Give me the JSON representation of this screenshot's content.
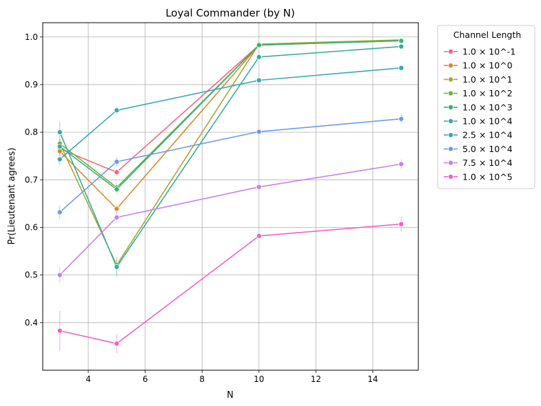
{
  "chart_data": {
    "type": "line",
    "title": "Loyal Commander (by N)",
    "xlabel": "N",
    "ylabel": "Pr(Lieutenant agrees)",
    "xlim": [
      2.4,
      15.6
    ],
    "ylim": [
      0.3,
      1.03
    ],
    "xticks": [
      4,
      6,
      8,
      10,
      12,
      14
    ],
    "yticks": [
      0.4,
      0.5,
      0.6,
      0.7,
      0.8,
      0.9,
      1.0
    ],
    "xtick_labels": [
      "4",
      "6",
      "8",
      "10",
      "12",
      "14"
    ],
    "ytick_labels": [
      "0.4",
      "0.5",
      "0.6",
      "0.7",
      "0.8",
      "0.9",
      "1.0"
    ],
    "grid": true,
    "legend_title": "Channel Length",
    "legend_position": "outside-right",
    "x": [
      3,
      5,
      10,
      15
    ],
    "series": [
      {
        "name": "1.0 × 10^-1",
        "color": "#f0667d",
        "values": [
          0.765,
          0.716,
          0.983,
          0.993
        ],
        "err": [
          0.01,
          0.008,
          0.003,
          0.002
        ]
      },
      {
        "name": "1.0 × 10^0",
        "color": "#d78a31",
        "values": [
          0.76,
          0.639,
          0.983,
          0.993
        ],
        "err": [
          0.01,
          0.009,
          0.003,
          0.002
        ]
      },
      {
        "name": "1.0 × 10^1",
        "color": "#a9a535",
        "values": [
          0.776,
          0.521,
          0.985,
          0.994
        ],
        "err": [
          0.01,
          0.012,
          0.003,
          0.002
        ]
      },
      {
        "name": "1.0 × 10^2",
        "color": "#6eb139",
        "values": [
          0.776,
          0.684,
          0.983,
          0.993
        ],
        "err": [
          0.01,
          0.009,
          0.003,
          0.002
        ]
      },
      {
        "name": "1.0 × 10^3",
        "color": "#33b27c",
        "values": [
          0.77,
          0.68,
          0.983,
          0.992
        ],
        "err": [
          0.01,
          0.009,
          0.003,
          0.002
        ]
      },
      {
        "name": "1.0 × 10^4",
        "color": "#36ab9c",
        "values": [
          0.8,
          0.517,
          0.958,
          0.98
        ],
        "err": [
          0.022,
          0.02,
          0.004,
          0.003
        ]
      },
      {
        "name": "2.5 × 10^4",
        "color": "#38a7b8",
        "values": [
          0.743,
          0.846,
          0.909,
          0.935
        ],
        "err": [
          0.012,
          0.008,
          0.005,
          0.004
        ]
      },
      {
        "name": "5.0 × 10^4",
        "color": "#6b9ae8",
        "values": [
          0.632,
          0.738,
          0.801,
          0.828
        ],
        "err": [
          0.014,
          0.01,
          0.006,
          0.008
        ]
      },
      {
        "name": "7.5 × 10^4",
        "color": "#c57ff2",
        "values": [
          0.5,
          0.621,
          0.685,
          0.733
        ],
        "err": [
          0.016,
          0.012,
          0.007,
          0.01
        ]
      },
      {
        "name": "1.0 × 10^5",
        "color": "#f160c5",
        "values": [
          0.383,
          0.356,
          0.582,
          0.607
        ],
        "err": [
          0.042,
          0.02,
          0.006,
          0.016
        ]
      }
    ]
  }
}
